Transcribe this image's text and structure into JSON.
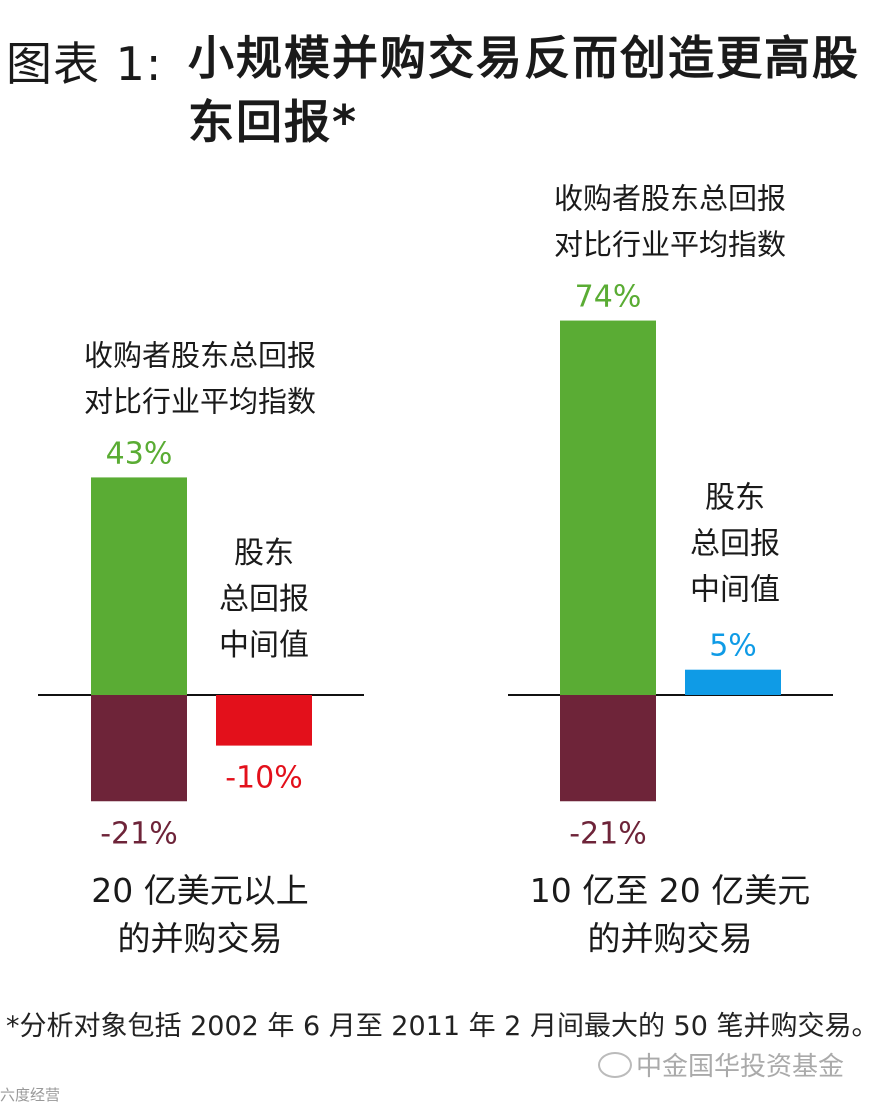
{
  "title": {
    "prefix": "图表 1:",
    "main": "小规模并购交易反而创造更高股东回报*"
  },
  "chart_data": [
    {
      "type": "bar",
      "category_label": "20 亿美元以上\n的并购交易",
      "y_label_lines": [
        "收购者股东总回报",
        "对比行业平均指数"
      ],
      "median_label_lines": [
        "股东",
        "总回报",
        "中间值"
      ],
      "bars": [
        {
          "key": "acquirer_positive",
          "value": 43,
          "label": "43%",
          "color": "#5aac34"
        },
        {
          "key": "acquirer_negative",
          "value": -21,
          "label": "-21%",
          "color": "#6e2439"
        },
        {
          "key": "median",
          "value": -10,
          "label": "-10%",
          "color": "#e3101b"
        }
      ]
    },
    {
      "type": "bar",
      "category_label": "10 亿至 20 亿美元\n的并购交易",
      "y_label_lines": [
        "收购者股东总回报",
        "对比行业平均指数"
      ],
      "median_label_lines": [
        "股东",
        "总回报",
        "中间值"
      ],
      "bars": [
        {
          "key": "acquirer_positive",
          "value": 74,
          "label": "74%",
          "color": "#5aac34"
        },
        {
          "key": "acquirer_negative",
          "value": -21,
          "label": "-21%",
          "color": "#6e2439"
        },
        {
          "key": "median",
          "value": 5,
          "label": "5%",
          "color": "#0f9be6"
        }
      ]
    }
  ],
  "colors": {
    "positive_label": "#5aac34",
    "negative_label": "#6e2439",
    "negative_median_label": "#e3101b",
    "positive_median_label": "#0f9be6"
  },
  "footnote": "*分析对象包括 2002 年 6 月至 2011 年 2 月间最大的 50 笔并购交易。",
  "watermark": "中金国华投资基金",
  "watermark2": "六度经营"
}
